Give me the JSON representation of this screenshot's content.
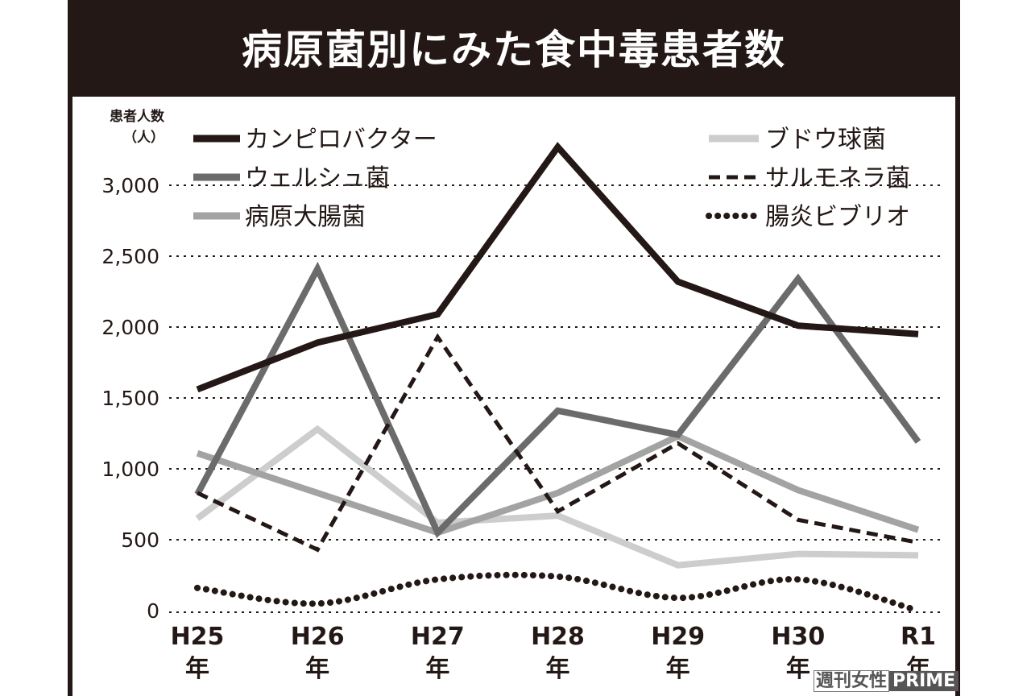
{
  "chart_data": {
    "type": "line",
    "title": "病原菌別にみた食中毒患者数",
    "ylabel": [
      "患者人数",
      "（人）"
    ],
    "xlabel": "",
    "ylim": [
      0,
      3300
    ],
    "yticks": [
      0,
      500,
      1000,
      1500,
      2000,
      2500,
      3000
    ],
    "ytick_labels": [
      "0",
      "500",
      "1,000",
      "1,500",
      "2,000",
      "2,500",
      "3,000"
    ],
    "grid": "horizontal-dotted",
    "categories": [
      "H25年",
      "H26年",
      "H27年",
      "H28年",
      "H29年",
      "H30年",
      "R1年"
    ],
    "category_lines": [
      [
        "H25",
        "年"
      ],
      [
        "H26",
        "年"
      ],
      [
        "H27",
        "年"
      ],
      [
        "H28",
        "年"
      ],
      [
        "H29",
        "年"
      ],
      [
        "H30",
        "年"
      ],
      [
        "R1",
        "年"
      ]
    ],
    "legend_placement": "top",
    "series": [
      {
        "name": "カンピロバクター",
        "values": [
          1560,
          1890,
          2090,
          3270,
          2320,
          2010,
          1950
        ],
        "color": "#231815",
        "style": "solid",
        "legend_col": "left"
      },
      {
        "name": "ウェルシュ菌",
        "values": [
          820,
          2410,
          550,
          1410,
          1240,
          2340,
          1190
        ],
        "color": "#6b6b6b",
        "style": "solid",
        "legend_col": "left"
      },
      {
        "name": "病原大腸菌",
        "values": [
          1110,
          830,
          550,
          830,
          1230,
          850,
          570
        ],
        "color": "#a3a3a3",
        "style": "solid",
        "legend_col": "left"
      },
      {
        "name": "ブドウ球菌",
        "values": [
          650,
          1280,
          620,
          670,
          320,
          400,
          390
        ],
        "color": "#cdcdcd",
        "style": "solid",
        "legend_col": "right"
      },
      {
        "name": "サルモネラ菌",
        "values": [
          830,
          430,
          1930,
          700,
          1180,
          640,
          480
        ],
        "color": "#231815",
        "style": "dashed",
        "legend_col": "right"
      },
      {
        "name": "腸炎ビブリオ",
        "values": [
          160,
          50,
          220,
          240,
          90,
          220,
          0
        ],
        "color": "#231815",
        "style": "dotted",
        "legend_col": "right"
      }
    ]
  },
  "watermark": {
    "part1": "週刊女性",
    "part2": "PRIME"
  }
}
